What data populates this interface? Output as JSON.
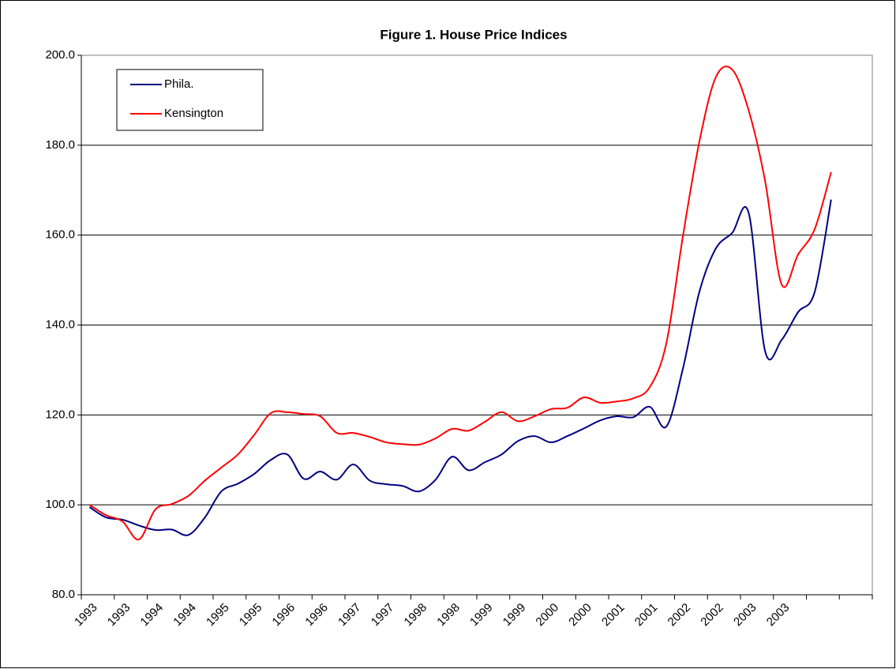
{
  "chart_data": {
    "type": "line",
    "title": "Figure 1. House Price Indices",
    "categories": [
      "1993",
      null,
      "1993",
      null,
      "1994",
      null,
      "1994",
      null,
      "1995",
      null,
      "1995",
      null,
      "1996",
      null,
      "1996",
      null,
      "1997",
      null,
      "1997",
      null,
      "1998",
      null,
      "1998",
      null,
      "1999",
      null,
      "1999",
      null,
      "2000",
      null,
      "2000",
      null,
      "2001",
      null,
      "2001",
      null,
      "2002",
      null,
      "2002",
      null,
      "2003",
      null,
      "2003",
      null,
      null,
      null,
      null,
      null
    ],
    "series": [
      {
        "name": "Phila.",
        "color": "#000080",
        "values": [
          99.5,
          97.2,
          96.7,
          95.4,
          94.4,
          94.5,
          93.3,
          97.2,
          103,
          104.7,
          106.9,
          110,
          111.2,
          105.8,
          107.4,
          105.6,
          109,
          105.4,
          104.6,
          104.2,
          103,
          105.6,
          110.7,
          107.7,
          109.5,
          111.2,
          114.2,
          115.3,
          113.9,
          115.3,
          117,
          118.8,
          119.7,
          119.5,
          121.8,
          117.4,
          130.2,
          147.3,
          157,
          160.5,
          164.9,
          134.1,
          136.7,
          142.9,
          147.3,
          167.9,
          null,
          null
        ]
      },
      {
        "name": "Kensington",
        "color": "#ff0000",
        "values": [
          100,
          97.7,
          96.3,
          92.3,
          99,
          100.2,
          102,
          105.4,
          108.3,
          111.2,
          115.6,
          120.4,
          120.6,
          120.2,
          119.7,
          116,
          116,
          115.1,
          113.9,
          113.5,
          113.4,
          114.8,
          116.9,
          116.5,
          118.5,
          120.6,
          118.6,
          119.7,
          121.3,
          121.6,
          123.9,
          122.7,
          123,
          123.7,
          126.2,
          135.9,
          159.6,
          180.7,
          195.1,
          196.8,
          187.7,
          171.9,
          149,
          155.7,
          161.3,
          174,
          null,
          null
        ]
      }
    ],
    "ylim": [
      80,
      200
    ],
    "yticks": [
      {
        "value": 80,
        "label": "80.0"
      },
      {
        "value": 100,
        "label": "100.0"
      },
      {
        "value": 120,
        "label": "120.0"
      },
      {
        "value": 140,
        "label": "140.0"
      },
      {
        "value": 160,
        "label": "160.0"
      },
      {
        "value": 180,
        "label": "180.0"
      },
      {
        "value": 200,
        "label": "200.0"
      }
    ],
    "grid": true,
    "legend": "top-left"
  }
}
